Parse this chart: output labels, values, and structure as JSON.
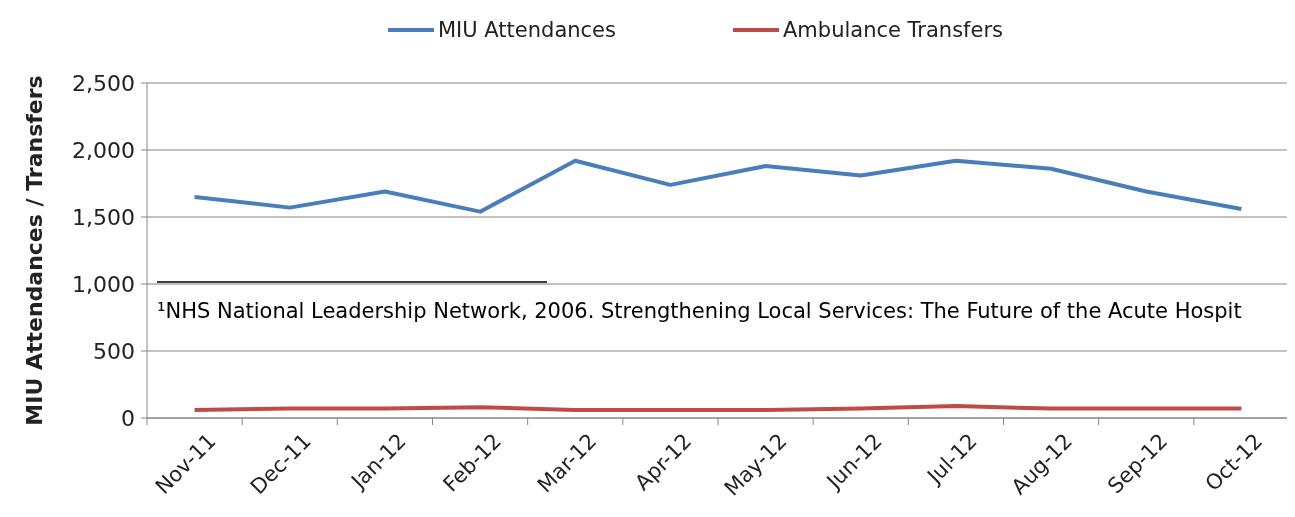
{
  "chart_data": {
    "type": "line",
    "ylabel": "MIU Attendances / Transfers",
    "categories": [
      "Nov-11",
      "Dec-11",
      "Jan-12",
      "Feb-12",
      "Mar-12",
      "Apr-12",
      "May-12",
      "Jun-12",
      "Jul-12",
      "Aug-12",
      "Sep-12",
      "Oct-12"
    ],
    "series": [
      {
        "name": "MIU Attendances",
        "color": "#4a7ebb",
        "values": [
          1650,
          1570,
          1690,
          1540,
          1920,
          1740,
          1880,
          1810,
          1920,
          1860,
          1690,
          1560
        ]
      },
      {
        "name": "Ambulance Transfers",
        "color": "#be4b48",
        "values": [
          60,
          70,
          70,
          80,
          60,
          60,
          60,
          70,
          90,
          70,
          70,
          70
        ]
      }
    ],
    "ylim": [
      0,
      2500
    ],
    "yticks": [
      {
        "value": 0,
        "label": "0"
      },
      {
        "value": 500,
        "label": "500"
      },
      {
        "value": 1000,
        "label": "1,000"
      },
      {
        "value": 1500,
        "label": "1,500"
      },
      {
        "value": 2000,
        "label": "2,000"
      },
      {
        "value": 2500,
        "label": "2,500"
      }
    ],
    "grid": "y",
    "legend": "top",
    "marker": "none",
    "line_style": "solid",
    "annotations": [
      "¹NHS National Leadership Network, 2006. Strengthening Local Services: The Future of the Acute Hospit"
    ]
  }
}
